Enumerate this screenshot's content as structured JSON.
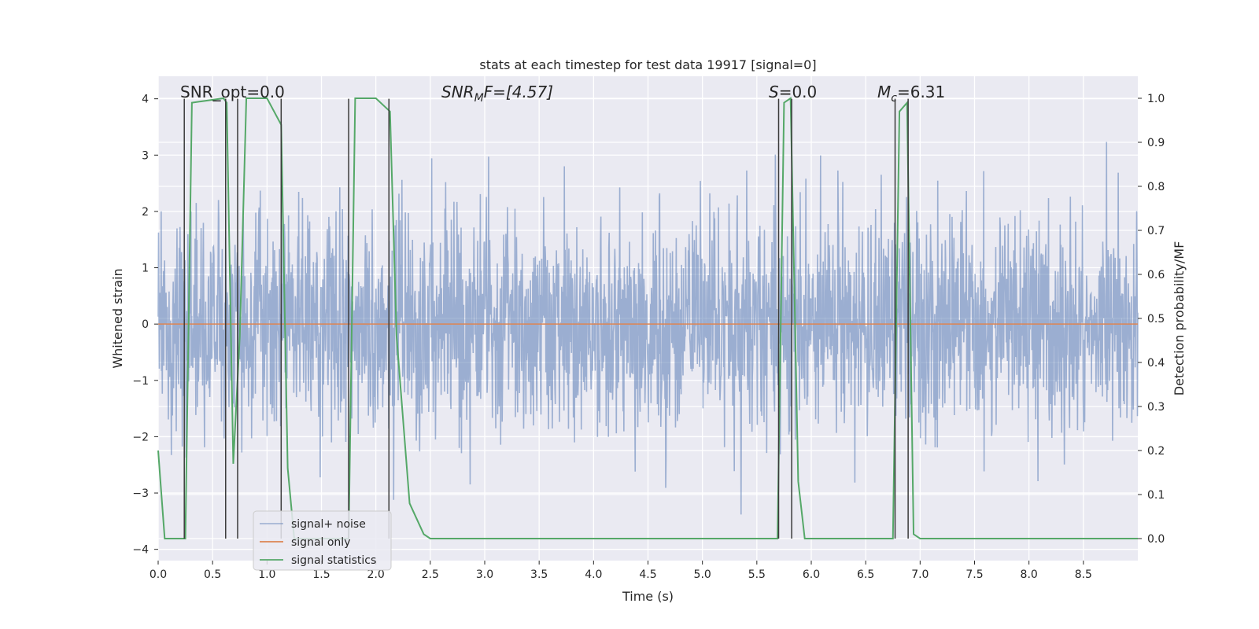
{
  "chart_data": {
    "type": "line",
    "title": "stats at each timestep for test data 19917 [signal=0]",
    "xlabel": "Time (s)",
    "ylabel": "Whitened strain",
    "y2label": "Detection probability/MF",
    "xlim": [
      0.0,
      9.0
    ],
    "ylim": [
      -4.2,
      4.4
    ],
    "y2lim": [
      -0.05,
      1.05
    ],
    "x_ticks": [
      0.0,
      0.5,
      1.0,
      1.5,
      2.0,
      2.5,
      3.0,
      3.5,
      4.0,
      4.5,
      5.0,
      5.5,
      6.0,
      6.5,
      7.0,
      7.5,
      8.0,
      8.5
    ],
    "x_tick_labels": [
      "0.0",
      "0.5",
      "1.0",
      "1.5",
      "2.0",
      "2.5",
      "3.0",
      "3.5",
      "4.0",
      "4.5",
      "5.0",
      "5.5",
      "6.0",
      "6.5",
      "7.0",
      "7.5",
      "8.0",
      "8.5"
    ],
    "y_ticks": [
      -4,
      -3,
      -2,
      -1,
      0,
      1,
      2,
      3,
      4
    ],
    "y_tick_labels": [
      "−4",
      "−3",
      "−2",
      "−1",
      "0",
      "1",
      "2",
      "3",
      "4"
    ],
    "y2_ticks": [
      0.0,
      0.1,
      0.2,
      0.3,
      0.4,
      0.5,
      0.6,
      0.7,
      0.8,
      0.9,
      1.0
    ],
    "y2_tick_labels": [
      "0.0",
      "0.1",
      "0.2",
      "0.3",
      "0.4",
      "0.5",
      "0.6",
      "0.7",
      "0.8",
      "0.9",
      "1.0"
    ],
    "grid": true,
    "legend_position": "lower-left",
    "annotations": {
      "snr_opt": "SNR_opt=0.0",
      "snr_mf_main": "SNR",
      "snr_mf_sub": "M",
      "snr_mf_rest": "F=[4.57]",
      "s_main": "S",
      "s_rest": "=0.0",
      "mc_main": "M",
      "mc_sub": "c",
      "mc_rest": "=6.31"
    },
    "series": [
      {
        "name": "signal+ noise",
        "color": "#4c72b0",
        "opacity": 0.5,
        "axis": "left",
        "kind": "noise",
        "x_range": [
          0.0,
          9.0
        ],
        "approx_range": [
          -3.5,
          3.3
        ],
        "typical_std": 0.95
      },
      {
        "name": "signal only",
        "color": "#dd8452",
        "axis": "left",
        "x": [
          0.0,
          9.0
        ],
        "y": [
          0.0,
          0.0
        ]
      },
      {
        "name": "signal statistics",
        "color": "#55a868",
        "axis": "right",
        "x": [
          0.0,
          0.06,
          0.25,
          0.31,
          0.6,
          0.63,
          0.69,
          0.75,
          0.81,
          1.0,
          1.13,
          1.19,
          1.25,
          1.31,
          1.56,
          1.75,
          1.81,
          2.0,
          2.13,
          2.19,
          2.31,
          2.44,
          2.5,
          5.5,
          5.69,
          5.75,
          5.81,
          5.88,
          5.94,
          6.75,
          6.81,
          6.88,
          6.94,
          7.0,
          9.0
        ],
        "y": [
          0.2,
          0.0,
          0.0,
          0.99,
          1.0,
          0.99,
          0.17,
          0.46,
          1.0,
          1.0,
          0.94,
          0.16,
          0.0,
          0.0,
          0.0,
          0.0,
          1.0,
          1.0,
          0.97,
          0.46,
          0.08,
          0.01,
          0.0,
          0.0,
          0.0,
          0.99,
          1.0,
          0.13,
          0.0,
          0.0,
          0.97,
          0.99,
          0.01,
          0.0,
          0.0
        ]
      }
    ],
    "vertical_markers": [
      0.24,
      0.62,
      0.73,
      1.13,
      1.75,
      2.12,
      5.7,
      5.82,
      6.77,
      6.89
    ],
    "vertical_marker_color": "#3a3a3a"
  }
}
